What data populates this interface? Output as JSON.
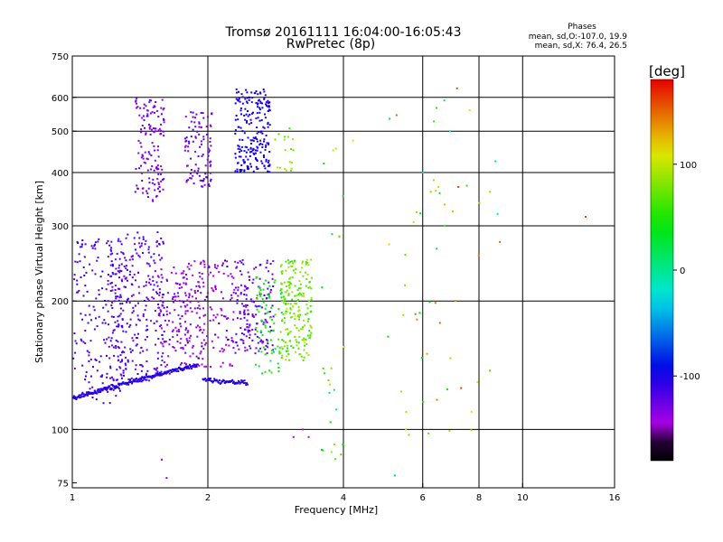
{
  "chart_data": {
    "type": "scatter",
    "title_line1": "Tromsø 20161111 16:04:00-16:05:43",
    "title_line2": "RwPretec (8p)",
    "stats": {
      "heading": "Phases",
      "line_o": "mean, sd,O:-107.0, 19.9",
      "line_x": "mean, sd,X:  76.4, 26.5"
    },
    "xlabel": "Frequency [MHz]",
    "ylabel": "Stationary phase Virtual Height [km]",
    "x_scale": "log2",
    "y_scale": "log",
    "xlim": [
      1,
      16
    ],
    "ylim": [
      73,
      750
    ],
    "x_ticks": [
      1,
      2,
      4,
      6,
      8,
      10,
      16
    ],
    "y_ticks": [
      75,
      100,
      200,
      300,
      400,
      500,
      600,
      750
    ],
    "x_gridlines": [
      2,
      4,
      6,
      8,
      10
    ],
    "y_gridlines": [
      100,
      200,
      300,
      400,
      500,
      600
    ],
    "colorbar": {
      "label": "[deg]",
      "range": [
        -180,
        180
      ],
      "ticks": [
        -100,
        0,
        100
      ],
      "colormap": "rainbow"
    },
    "clusters": [
      {
        "f": [
          1.38,
          1.6
        ],
        "h": [
          340,
          600
        ],
        "phase": -130,
        "spread": 20,
        "count": 140
      },
      {
        "f": [
          1.78,
          2.05
        ],
        "h": [
          370,
          560
        ],
        "phase": -125,
        "spread": 20,
        "count": 100
      },
      {
        "f": [
          2.3,
          2.75
        ],
        "h": [
          400,
          630
        ],
        "phase": -100,
        "spread": 15,
        "count": 220
      },
      {
        "f": [
          2.82,
          3.1
        ],
        "h": [
          400,
          510
        ],
        "phase": 80,
        "spread": 30,
        "count": 18
      },
      {
        "f": [
          1.0,
          1.3
        ],
        "h": [
          115,
          280
        ],
        "phase": -115,
        "spread": 15,
        "count": 180
      },
      {
        "f": [
          1.2,
          1.6
        ],
        "h": [
          130,
          290
        ],
        "phase": -120,
        "spread": 20,
        "count": 280
      },
      {
        "f": [
          1.55,
          1.8
        ],
        "h": [
          140,
          240
        ],
        "phase": -135,
        "spread": 25,
        "count": 120
      },
      {
        "f": [
          1.8,
          2.3
        ],
        "h": [
          140,
          250
        ],
        "phase": -140,
        "spread": 20,
        "count": 170
      },
      {
        "f": [
          2.3,
          2.8
        ],
        "h": [
          150,
          250
        ],
        "phase": -125,
        "spread": 25,
        "count": 170
      },
      {
        "f": [
          2.55,
          2.95
        ],
        "h": [
          135,
          230
        ],
        "phase": 40,
        "spread": 50,
        "count": 80
      },
      {
        "f": [
          2.9,
          3.4
        ],
        "h": [
          145,
          250
        ],
        "phase": 75,
        "spread": 40,
        "count": 200
      },
      {
        "f": [
          3.55,
          4.05
        ],
        "h": [
          85,
          500
        ],
        "phase": 60,
        "spread": 90,
        "count": 25
      },
      {
        "f": [
          5.0,
          8.5
        ],
        "h": [
          95,
          600
        ],
        "phase": 80,
        "spread": 100,
        "count": 45
      }
    ],
    "traces": [
      {
        "f": [
          1.0,
          1.9
        ],
        "h": [
          118,
          142
        ],
        "phase": -105,
        "count": 220
      },
      {
        "f": [
          1.95,
          2.45
        ],
        "h": [
          131,
          128
        ],
        "phase": -105,
        "count": 60
      }
    ],
    "isolated_points": [
      {
        "f": 5.25,
        "h": 545,
        "phase": 150
      },
      {
        "f": 7.15,
        "h": 630,
        "phase": 160
      },
      {
        "f": 6.7,
        "h": 590,
        "phase": 20
      },
      {
        "f": 6.9,
        "h": 500,
        "phase": -20
      },
      {
        "f": 8.7,
        "h": 425,
        "phase": -10
      },
      {
        "f": 8.8,
        "h": 320,
        "phase": -20
      },
      {
        "f": 8.9,
        "h": 275,
        "phase": 150
      },
      {
        "f": 13.8,
        "h": 315,
        "phase": 160
      },
      {
        "f": 6.0,
        "h": 400,
        "phase": -30
      },
      {
        "f": 6.5,
        "h": 370,
        "phase": 100
      },
      {
        "f": 7.2,
        "h": 370,
        "phase": 160
      },
      {
        "f": 7.1,
        "h": 200,
        "phase": 140
      },
      {
        "f": 7.3,
        "h": 125,
        "phase": 160
      },
      {
        "f": 7.7,
        "h": 110,
        "phase": 110
      },
      {
        "f": 3.25,
        "h": 100,
        "phase": -150
      },
      {
        "f": 3.1,
        "h": 96,
        "phase": -140
      },
      {
        "f": 3.35,
        "h": 96,
        "phase": -150
      },
      {
        "f": 1.58,
        "h": 85,
        "phase": -140
      },
      {
        "f": 1.62,
        "h": 77,
        "phase": -140
      },
      {
        "f": 5.2,
        "h": 78,
        "phase": -40
      },
      {
        "f": 4.2,
        "h": 475,
        "phase": 110
      },
      {
        "f": 3.85,
        "h": 455,
        "phase": 120
      }
    ]
  }
}
